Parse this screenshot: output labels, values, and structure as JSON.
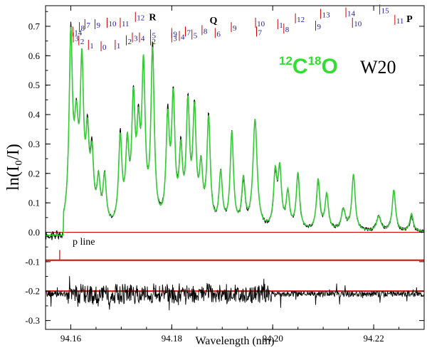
{
  "chart_data": {
    "type": "line",
    "title": "",
    "xlabel": "Wavelength (nm)",
    "ylabel": "ln(I₀/I)",
    "xlim": [
      94.155,
      94.23
    ],
    "ylim": [
      -0.33,
      0.77
    ],
    "xticks": [
      94.16,
      94.18,
      94.2,
      94.22
    ],
    "xtick_labels": [
      "94.16",
      "94.18",
      "94.20",
      "94.22"
    ],
    "yticks": [
      -0.3,
      -0.2,
      -0.1,
      0.0,
      0.1,
      0.2,
      0.3,
      0.4,
      0.5,
      0.6,
      0.7
    ],
    "ytick_labels": [
      "-0.3",
      "-0.2",
      "-0.1",
      "0.0",
      "0.1",
      "0.2",
      "0.3",
      "0.4",
      "0.5",
      "0.6",
      "0.7"
    ],
    "species_label": {
      "prefix1": "12",
      "mid": "C",
      "prefix2": "18",
      "end": "O"
    },
    "band_label": "W20",
    "annotation": "p line",
    "branch_labels": [
      {
        "text": "R",
        "x": 94.1755,
        "y": 0.72
      },
      {
        "text": "Q",
        "x": 94.1875,
        "y": 0.71
      },
      {
        "text": "P",
        "x": 94.2265,
        "y": 0.715
      }
    ],
    "reference_lines": [
      {
        "name": "baseline",
        "y": 0.0,
        "color": "#e00000"
      },
      {
        "name": "p-line",
        "y": -0.095,
        "color": "#e00000"
      },
      {
        "name": "residual-line",
        "y": -0.2,
        "color": "#e00000"
      }
    ],
    "j_labels": {
      "R": [
        {
          "j": "14",
          "x": 94.1604,
          "y": 0.67
        },
        {
          "j": "8",
          "x": 94.1617,
          "y": 0.685
        },
        {
          "j": "7",
          "x": 94.1628,
          "y": 0.695
        },
        {
          "j": "9",
          "x": 94.1648,
          "y": 0.695
        },
        {
          "j": "10",
          "x": 94.1672,
          "y": 0.7
        },
        {
          "j": "11",
          "x": 94.1698,
          "y": 0.7
        },
        {
          "j": "12",
          "x": 94.1728,
          "y": 0.72
        },
        {
          "j": "3",
          "x": 94.1605,
          "y": 0.65
        },
        {
          "j": "2",
          "x": 94.1616,
          "y": 0.64
        },
        {
          "j": "1",
          "x": 94.1635,
          "y": 0.625
        },
        {
          "j": "0",
          "x": 94.166,
          "y": 0.62
        },
        {
          "j": "1",
          "x": 94.1688,
          "y": 0.625
        },
        {
          "j": "2",
          "x": 94.171,
          "y": 0.64
        },
        {
          "j": "3",
          "x": 94.1722,
          "y": 0.65
        },
        {
          "j": "4",
          "x": 94.1736,
          "y": 0.65
        },
        {
          "j": "5",
          "x": 94.1758,
          "y": 0.66
        },
        {
          "j": "2",
          "x": 94.1758,
          "y": 0.64
        }
      ],
      "Q": [
        {
          "j": "9",
          "x": 94.18,
          "y": 0.665
        },
        {
          "j": "3",
          "x": 94.18,
          "y": 0.65
        },
        {
          "j": "4",
          "x": 94.1815,
          "y": 0.655
        },
        {
          "j": "7",
          "x": 94.1827,
          "y": 0.67
        },
        {
          "j": "5",
          "x": 94.184,
          "y": 0.66
        },
        {
          "j": "8",
          "x": 94.186,
          "y": 0.675
        },
        {
          "j": "6",
          "x": 94.1886,
          "y": 0.665
        },
        {
          "j": "9",
          "x": 94.1918,
          "y": 0.685
        },
        {
          "j": "10",
          "x": 94.1966,
          "y": 0.7
        },
        {
          "j": "7",
          "x": 94.1968,
          "y": 0.67
        }
      ],
      "P": [
        {
          "j": "1",
          "x": 94.201,
          "y": 0.695
        },
        {
          "j": "8",
          "x": 94.2022,
          "y": 0.68
        },
        {
          "j": "12",
          "x": 94.2045,
          "y": 0.715
        },
        {
          "j": "9",
          "x": 94.2085,
          "y": 0.69
        },
        {
          "j": "13",
          "x": 94.2095,
          "y": 0.73
        },
        {
          "j": "14",
          "x": 94.2145,
          "y": 0.735
        },
        {
          "j": "10",
          "x": 94.2158,
          "y": 0.7
        },
        {
          "j": "15",
          "x": 94.2212,
          "y": 0.745
        },
        {
          "j": "11",
          "x": 94.2242,
          "y": 0.71
        }
      ]
    },
    "series": [
      {
        "name": "observed",
        "color": "#000000",
        "baseline": 0.0,
        "peaks": [
          [
            94.16,
            0.64,
            0.0004
          ],
          [
            94.1611,
            0.3,
            0.0005
          ],
          [
            94.1622,
            0.5,
            0.0004
          ],
          [
            94.1633,
            0.27,
            0.0004
          ],
          [
            94.1642,
            0.22,
            0.0004
          ],
          [
            94.1655,
            0.14,
            0.0004
          ],
          [
            94.1667,
            0.16,
            0.0004
          ],
          [
            94.1698,
            0.3,
            0.0004
          ],
          [
            94.1712,
            0.24,
            0.0004
          ],
          [
            94.1724,
            0.4,
            0.0004
          ],
          [
            94.1734,
            0.28,
            0.0004
          ],
          [
            94.1744,
            0.5,
            0.0004
          ],
          [
            94.1762,
            0.6,
            0.0004
          ],
          [
            94.1792,
            0.35,
            0.0004
          ],
          [
            94.1803,
            0.42,
            0.0004
          ],
          [
            94.1818,
            0.24,
            0.0004
          ],
          [
            94.1832,
            0.4,
            0.0004
          ],
          [
            94.1845,
            0.38,
            0.0004
          ],
          [
            94.1858,
            0.18,
            0.0004
          ],
          [
            94.1873,
            0.37,
            0.0004
          ],
          [
            94.1897,
            0.18,
            0.0004
          ],
          [
            94.1919,
            0.32,
            0.0004
          ],
          [
            94.1942,
            0.15,
            0.0004
          ],
          [
            94.1965,
            0.37,
            0.0005
          ],
          [
            94.2005,
            0.17,
            0.0004
          ],
          [
            94.2014,
            0.19,
            0.0004
          ],
          [
            94.203,
            0.12,
            0.0004
          ],
          [
            94.205,
            0.18,
            0.0004
          ],
          [
            94.209,
            0.16,
            0.0004
          ],
          [
            94.2107,
            0.12,
            0.0004
          ],
          [
            94.214,
            0.07,
            0.0005
          ],
          [
            94.216,
            0.19,
            0.0004
          ],
          [
            94.221,
            0.05,
            0.0005
          ],
          [
            94.224,
            0.14,
            0.0004
          ],
          [
            94.2275,
            0.05,
            0.0004
          ]
        ]
      },
      {
        "name": "fit",
        "color": "#33cc33",
        "baseline": 0.0,
        "peaks": [
          [
            94.16,
            0.62,
            0.0004
          ],
          [
            94.1611,
            0.3,
            0.0005
          ],
          [
            94.1622,
            0.51,
            0.0004
          ],
          [
            94.1633,
            0.26,
            0.0004
          ],
          [
            94.1642,
            0.21,
            0.0004
          ],
          [
            94.1655,
            0.14,
            0.0004
          ],
          [
            94.1667,
            0.16,
            0.0004
          ],
          [
            94.1698,
            0.29,
            0.0004
          ],
          [
            94.1712,
            0.25,
            0.0004
          ],
          [
            94.1724,
            0.39,
            0.0004
          ],
          [
            94.1734,
            0.27,
            0.0004
          ],
          [
            94.1744,
            0.51,
            0.0004
          ],
          [
            94.1762,
            0.58,
            0.0004
          ],
          [
            94.1792,
            0.34,
            0.0004
          ],
          [
            94.1803,
            0.41,
            0.0004
          ],
          [
            94.1818,
            0.23,
            0.0004
          ],
          [
            94.1832,
            0.39,
            0.0004
          ],
          [
            94.1845,
            0.37,
            0.0004
          ],
          [
            94.1858,
            0.18,
            0.0004
          ],
          [
            94.1873,
            0.36,
            0.0004
          ],
          [
            94.1897,
            0.18,
            0.0004
          ],
          [
            94.1919,
            0.32,
            0.0004
          ],
          [
            94.1942,
            0.16,
            0.0004
          ],
          [
            94.1965,
            0.37,
            0.0005
          ],
          [
            94.2005,
            0.18,
            0.0004
          ],
          [
            94.2014,
            0.19,
            0.0004
          ],
          [
            94.203,
            0.12,
            0.0004
          ],
          [
            94.205,
            0.19,
            0.0004
          ],
          [
            94.209,
            0.17,
            0.0004
          ],
          [
            94.2107,
            0.12,
            0.0004
          ],
          [
            94.214,
            0.07,
            0.0005
          ],
          [
            94.216,
            0.19,
            0.0004
          ],
          [
            94.221,
            0.05,
            0.0005
          ],
          [
            94.224,
            0.14,
            0.0004
          ],
          [
            94.2275,
            0.06,
            0.0004
          ]
        ]
      },
      {
        "name": "residual",
        "color": "#000000",
        "baseline": -0.21,
        "noise_amplitude": 0.03
      }
    ]
  }
}
